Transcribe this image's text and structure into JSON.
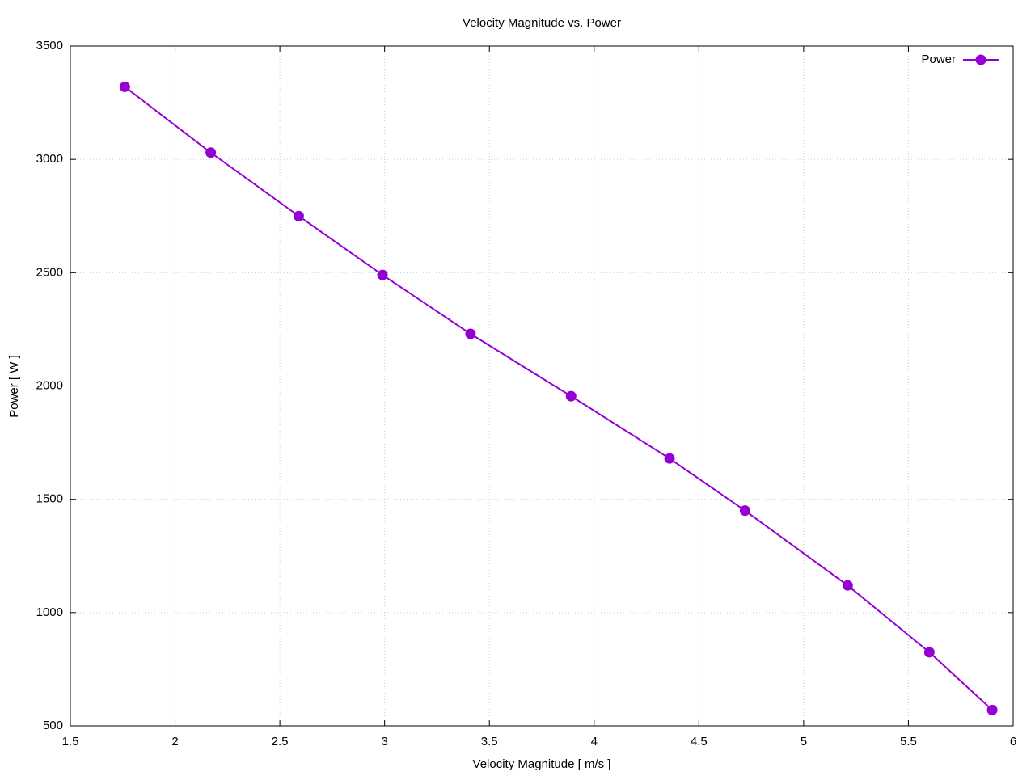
{
  "chart_data": {
    "type": "line",
    "title": "Velocity Magnitude vs. Power",
    "x_label": "Velocity Magnitude [ m/s ]",
    "y_label": "Power [ W ]",
    "x": [
      1.76,
      2.17,
      2.59,
      2.99,
      3.41,
      3.89,
      4.36,
      4.72,
      5.21,
      5.6,
      5.9
    ],
    "series": [
      {
        "name": "Power",
        "color": "#9400d3",
        "values": [
          3320,
          3030,
          2750,
          2490,
          2230,
          1955,
          1680,
          1450,
          1120,
          825,
          570
        ]
      }
    ],
    "xlim": [
      1.5,
      6
    ],
    "xticks": [
      1.5,
      2,
      2.5,
      3,
      3.5,
      4,
      4.5,
      5,
      5.5,
      6
    ],
    "ylim": [
      500,
      3500
    ],
    "yticks": [
      500,
      1000,
      1500,
      2000,
      2500,
      3000,
      3500
    ],
    "grid": true,
    "legend": "top-right"
  }
}
